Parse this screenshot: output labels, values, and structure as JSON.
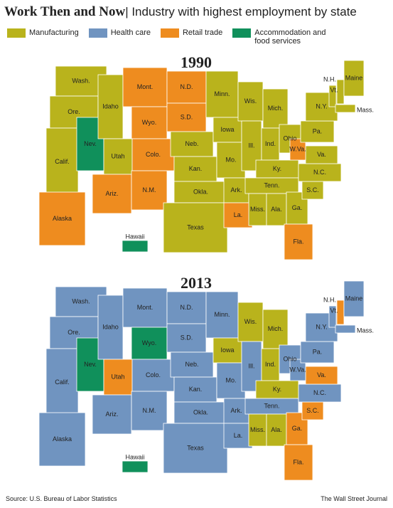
{
  "header": {
    "title": "Work Then and Now",
    "subtitle": "Industry with highest employment by state"
  },
  "legend": [
    {
      "label": "Manufacturing",
      "color": "#b9b31c"
    },
    {
      "label": "Health care",
      "color": "#7094c0"
    },
    {
      "label": "Retail trade",
      "color": "#ee8c1f"
    },
    {
      "label": "Accommodation and food services",
      "color": "#10905b"
    }
  ],
  "maps": [
    {
      "title": "1990",
      "states": [
        {
          "label": "Wash.",
          "industry": 0
        },
        {
          "label": "Ore.",
          "industry": 0
        },
        {
          "label": "Calif.",
          "industry": 0
        },
        {
          "label": "Nev.",
          "industry": 3
        },
        {
          "label": "Idaho",
          "industry": 0
        },
        {
          "label": "Mont.",
          "industry": 2
        },
        {
          "label": "Wyo.",
          "industry": 2
        },
        {
          "label": "Utah",
          "industry": 0
        },
        {
          "label": "Colo.",
          "industry": 2
        },
        {
          "label": "Ariz.",
          "industry": 2
        },
        {
          "label": "N.M.",
          "industry": 2
        },
        {
          "label": "N.D.",
          "industry": 2
        },
        {
          "label": "S.D.",
          "industry": 2
        },
        {
          "label": "Neb.",
          "industry": 0
        },
        {
          "label": "Kan.",
          "industry": 0
        },
        {
          "label": "Okla.",
          "industry": 0
        },
        {
          "label": "Texas",
          "industry": 0
        },
        {
          "label": "Minn.",
          "industry": 0
        },
        {
          "label": "Iowa",
          "industry": 0
        },
        {
          "label": "Mo.",
          "industry": 0
        },
        {
          "label": "Ark.",
          "industry": 0
        },
        {
          "label": "La.",
          "industry": 2
        },
        {
          "label": "Wis.",
          "industry": 0
        },
        {
          "label": "Ill.",
          "industry": 0
        },
        {
          "label": "Mich.",
          "industry": 0
        },
        {
          "label": "Ind.",
          "industry": 0
        },
        {
          "label": "Ohio",
          "industry": 0
        },
        {
          "label": "Ky.",
          "industry": 0
        },
        {
          "label": "Tenn.",
          "industry": 0
        },
        {
          "label": "Miss.",
          "industry": 0
        },
        {
          "label": "Ala.",
          "industry": 0
        },
        {
          "label": "Ga.",
          "industry": 0
        },
        {
          "label": "Fla.",
          "industry": 2
        },
        {
          "label": "S.C.",
          "industry": 0
        },
        {
          "label": "N.C.",
          "industry": 0
        },
        {
          "label": "Va.",
          "industry": 0
        },
        {
          "label": "W.Va.",
          "industry": 2
        },
        {
          "label": "Pa.",
          "industry": 0
        },
        {
          "label": "N.Y.",
          "industry": 0
        },
        {
          "label": "Vt.",
          "industry": 0
        },
        {
          "label": "N.H.",
          "industry": 0
        },
        {
          "label": "Maine",
          "industry": 0
        },
        {
          "label": "Mass.",
          "industry": 0
        },
        {
          "label": "Alaska",
          "industry": 2
        },
        {
          "label": "Hawaii",
          "industry": 3
        }
      ]
    },
    {
      "title": "2013",
      "states": [
        {
          "label": "Wash.",
          "industry": 1
        },
        {
          "label": "Ore.",
          "industry": 1
        },
        {
          "label": "Calif.",
          "industry": 1
        },
        {
          "label": "Nev.",
          "industry": 3
        },
        {
          "label": "Idaho",
          "industry": 1
        },
        {
          "label": "Mont.",
          "industry": 1
        },
        {
          "label": "Wyo.",
          "industry": 3
        },
        {
          "label": "Utah",
          "industry": 2
        },
        {
          "label": "Colo.",
          "industry": 1
        },
        {
          "label": "Ariz.",
          "industry": 1
        },
        {
          "label": "N.M.",
          "industry": 1
        },
        {
          "label": "N.D.",
          "industry": 1
        },
        {
          "label": "S.D.",
          "industry": 1
        },
        {
          "label": "Neb.",
          "industry": 1
        },
        {
          "label": "Kan.",
          "industry": 1
        },
        {
          "label": "Okla.",
          "industry": 1
        },
        {
          "label": "Texas",
          "industry": 1
        },
        {
          "label": "Minn.",
          "industry": 1
        },
        {
          "label": "Iowa",
          "industry": 0
        },
        {
          "label": "Mo.",
          "industry": 1
        },
        {
          "label": "Ark.",
          "industry": 1
        },
        {
          "label": "La.",
          "industry": 1
        },
        {
          "label": "Wis.",
          "industry": 0
        },
        {
          "label": "Ill.",
          "industry": 1
        },
        {
          "label": "Mich.",
          "industry": 0
        },
        {
          "label": "Ind.",
          "industry": 0
        },
        {
          "label": "Ohio",
          "industry": 1
        },
        {
          "label": "Ky.",
          "industry": 0
        },
        {
          "label": "Tenn.",
          "industry": 1
        },
        {
          "label": "Miss.",
          "industry": 0
        },
        {
          "label": "Ala.",
          "industry": 0
        },
        {
          "label": "Ga.",
          "industry": 2
        },
        {
          "label": "Fla.",
          "industry": 2
        },
        {
          "label": "S.C.",
          "industry": 2
        },
        {
          "label": "N.C.",
          "industry": 1
        },
        {
          "label": "Va.",
          "industry": 2
        },
        {
          "label": "W.Va.",
          "industry": 1
        },
        {
          "label": "Pa.",
          "industry": 1
        },
        {
          "label": "N.Y.",
          "industry": 1
        },
        {
          "label": "Vt.",
          "industry": 1
        },
        {
          "label": "N.H.",
          "industry": 2
        },
        {
          "label": "Maine",
          "industry": 1
        },
        {
          "label": "Mass.",
          "industry": 1
        },
        {
          "label": "Alaska",
          "industry": 1
        },
        {
          "label": "Hawaii",
          "industry": 3
        }
      ]
    }
  ],
  "footer": {
    "source": "Source: U.S. Bureau of Labor Statistics",
    "publisher": "The Wall Street Journal"
  }
}
